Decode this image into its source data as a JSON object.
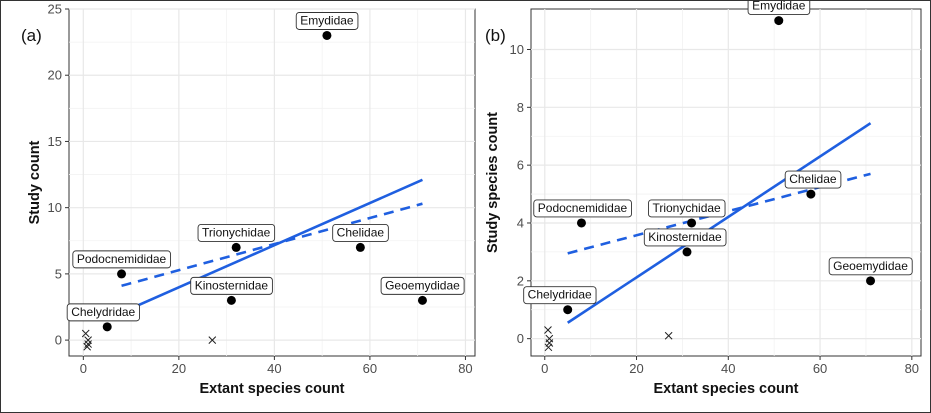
{
  "chart_data": [
    {
      "type": "scatter",
      "panel": "(a)",
      "xlabel": "Extant species count",
      "ylabel": "Study count",
      "xlim": [
        -3,
        82
      ],
      "ylim": [
        -1.2,
        25
      ],
      "xticks": [
        0,
        20,
        40,
        60,
        80
      ],
      "yticks": [
        0,
        5,
        10,
        15,
        20,
        25
      ],
      "grid": true,
      "points": [
        {
          "label": "Emydidae",
          "x": 51,
          "y": 23
        },
        {
          "label": "Podocnemididae",
          "x": 8,
          "y": 5
        },
        {
          "label": "Trionychidae",
          "x": 32,
          "y": 7
        },
        {
          "label": "Chelidae",
          "x": 58,
          "y": 7
        },
        {
          "label": "Kinosternidae",
          "x": 31,
          "y": 3
        },
        {
          "label": "Geoemydidae",
          "x": 71,
          "y": 3
        },
        {
          "label": "Chelydridae",
          "x": 5,
          "y": 1
        }
      ],
      "crosses": [
        {
          "x": 0.5,
          "y": 0.5
        },
        {
          "x": 1,
          "y": 0
        },
        {
          "x": 1,
          "y": -0.3
        },
        {
          "x": 0.8,
          "y": -0.5
        },
        {
          "x": 27,
          "y": 0
        }
      ],
      "fit_solid": {
        "x": [
          5,
          71
        ],
        "y": [
          1.6,
          12.1
        ]
      },
      "fit_dashed": {
        "x": [
          8,
          71
        ],
        "y": [
          4.1,
          10.3
        ]
      }
    },
    {
      "type": "scatter",
      "panel": "(b)",
      "xlabel": "Extant species count",
      "ylabel": "Study species count",
      "xlim": [
        -3,
        82
      ],
      "ylim": [
        -0.6,
        11.4
      ],
      "xticks": [
        0,
        20,
        40,
        60,
        80
      ],
      "yticks": [
        0,
        2,
        4,
        6,
        8,
        10
      ],
      "grid": true,
      "points": [
        {
          "label": "Emydidae",
          "x": 51,
          "y": 11
        },
        {
          "label": "Podocnemididae",
          "x": 8,
          "y": 4
        },
        {
          "label": "Trionychidae",
          "x": 32,
          "y": 4
        },
        {
          "label": "Kinosternidae",
          "x": 31,
          "y": 3
        },
        {
          "label": "Chelidae",
          "x": 58,
          "y": 5
        },
        {
          "label": "Geoemydidae",
          "x": 71,
          "y": 2
        },
        {
          "label": "Chelydridae",
          "x": 5,
          "y": 1
        }
      ],
      "crosses": [
        {
          "x": 0.7,
          "y": 0.3
        },
        {
          "x": 1,
          "y": 0
        },
        {
          "x": 1,
          "y": -0.15
        },
        {
          "x": 0.8,
          "y": -0.3
        },
        {
          "x": 27,
          "y": 0.1
        }
      ],
      "fit_solid": {
        "x": [
          5,
          71
        ],
        "y": [
          0.55,
          7.45
        ]
      },
      "fit_dashed": {
        "x": [
          5,
          71
        ],
        "y": [
          2.95,
          5.7
        ]
      }
    }
  ],
  "colors": {
    "fit_line": "#1f5fe0",
    "point": "#000000",
    "grid": "#e8e8e8",
    "panel_bg": "#ffffff"
  }
}
